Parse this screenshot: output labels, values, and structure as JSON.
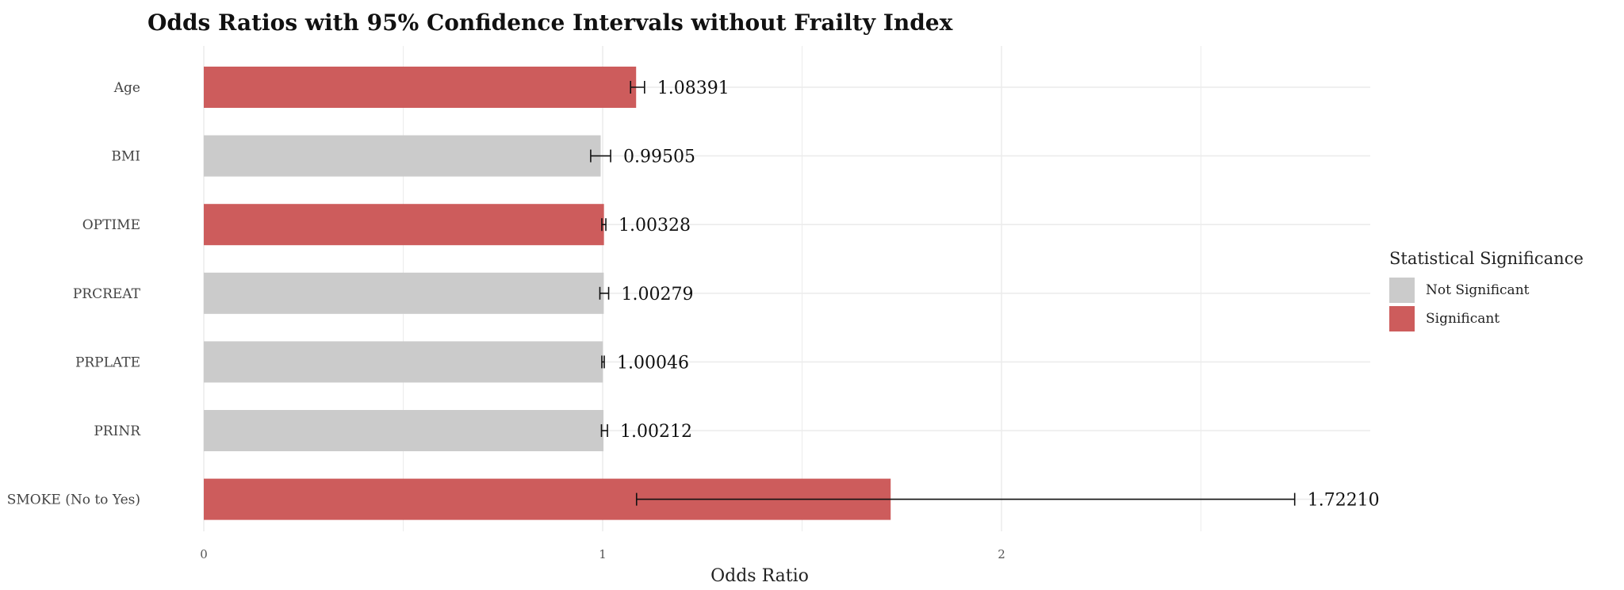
{
  "chart_data": {
    "type": "bar",
    "orientation": "horizontal",
    "title": "Odds Ratios with 95% Confidence Intervals without Frailty Index",
    "xlabel": "Odds Ratio",
    "ylabel": "",
    "xlim": [
      0,
      2.9
    ],
    "xticks": [
      "0",
      "1",
      "2"
    ],
    "grid": true,
    "categories": [
      "Age",
      "BMI",
      "OPTIME",
      "PRCREAT",
      "PRPLATE",
      "PRINR",
      "SMOKE (No to Yes)"
    ],
    "values": [
      1.08391,
      0.99505,
      1.00328,
      1.00279,
      1.00046,
      1.00212,
      1.7221
    ],
    "value_labels": [
      "1.08391",
      "0.99505",
      "1.00328",
      "1.00279",
      "1.00046",
      "1.00212",
      "1.72210"
    ],
    "ci_lower": [
      1.07,
      0.97,
      0.998,
      0.993,
      0.998,
      0.997,
      1.085
    ],
    "ci_upper": [
      1.105,
      1.02,
      1.008,
      1.015,
      1.004,
      1.012,
      2.735
    ],
    "significance": [
      "Significant",
      "Not Significant",
      "Significant",
      "Not Significant",
      "Not Significant",
      "Not Significant",
      "Significant"
    ],
    "legend": {
      "title": "Statistical Significance",
      "position": "right",
      "items": [
        {
          "label": "Not Significant",
          "color": "#cbcbcb"
        },
        {
          "label": "Significant",
          "color": "#cd5c5c"
        }
      ]
    }
  }
}
